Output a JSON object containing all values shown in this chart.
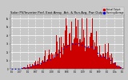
{
  "title": "Solar PV/Inverter Perf. East Array  Act. & Run.Avg. Pwr Output",
  "title_fontsize": 2.8,
  "background_color": "#c8c8c8",
  "plot_bg_color": "#c8c8c8",
  "bar_color": "#cc0000",
  "dot_color": "#0000dd",
  "grid_color": "#ffffff",
  "x_tick_labels": [
    "5/1",
    "1/07",
    "5/1",
    "9/07",
    "5/1",
    "1/08",
    "5/1",
    "9/08",
    "5/1",
    "1/09",
    "5/1",
    "9/09",
    "5/1",
    "1/0a",
    "5/1"
  ],
  "y_tick_labels": [
    "0",
    "1k",
    "2k",
    "3k",
    "4k",
    "5k",
    "6k"
  ],
  "legend_label1": "Actual Output",
  "legend_label2": "Running Average",
  "legend_color1": "#cc0000",
  "legend_color2": "#0000dd"
}
